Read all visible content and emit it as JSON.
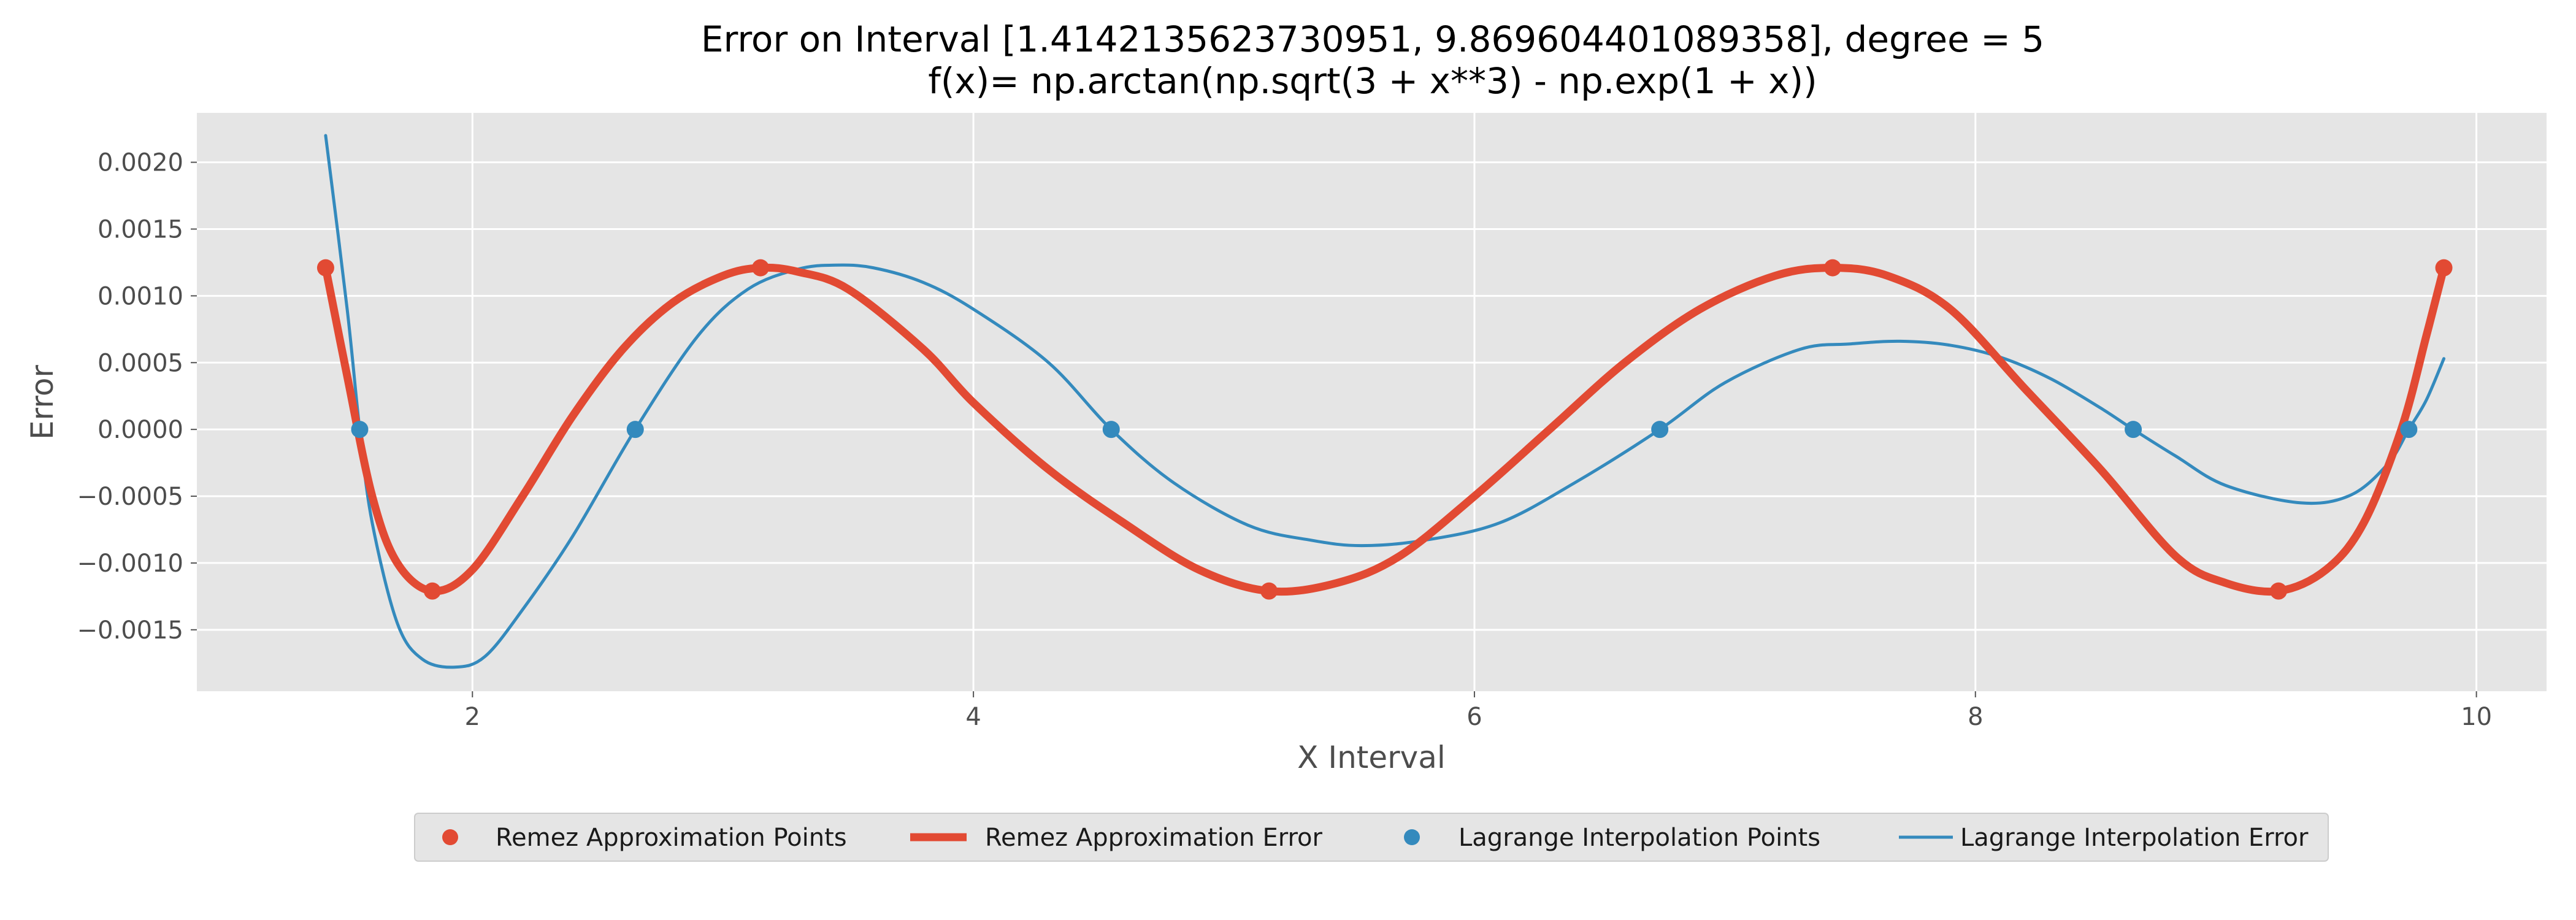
{
  "chart_data": {
    "type": "line",
    "title": "Error on Interval [1.4142135623730951, 9.869604401089358], degree = 5",
    "subtitle": "f(x)= np.arctan(np.sqrt(3 + x**3) - np.exp(1 + x))",
    "xlabel": "X Interval",
    "ylabel": "Error",
    "xlim": [
      0.9,
      10.28
    ],
    "ylim": [
      -0.00196,
      0.00237
    ],
    "xticks": [
      2,
      4,
      6,
      8,
      10
    ],
    "xtick_labels": [
      "2",
      "4",
      "6",
      "8",
      "10"
    ],
    "yticks": [
      0.002,
      0.0015,
      0.001,
      0.0005,
      0.0,
      -0.0005,
      -0.001,
      -0.0015
    ],
    "ytick_labels": [
      "0.0020",
      "0.0015",
      "0.0010",
      "0.0005",
      "0.0000",
      "−0.0005",
      "−0.0010",
      "−0.0015"
    ],
    "grid": true,
    "legend_position": "bottom-center",
    "colors": {
      "remez": "#E24A33",
      "lagrange": "#348ABD",
      "plot_bg": "#E5E5E5",
      "grid": "#FFFFFF"
    },
    "series": [
      {
        "name": "Remez Approximation Points",
        "kind": "scatter",
        "x": [
          1.414,
          1.84,
          3.15,
          5.18,
          7.43,
          9.21,
          9.87
        ],
        "y": [
          0.00121,
          -0.00121,
          0.00121,
          -0.00121,
          0.00121,
          -0.00121,
          0.00121
        ]
      },
      {
        "name": "Remez Approximation Error",
        "kind": "line",
        "x": [
          1.414,
          1.5,
          1.6,
          1.7,
          1.84,
          2.0,
          2.2,
          2.4,
          2.6,
          2.8,
          3.0,
          3.15,
          3.3,
          3.5,
          3.8,
          4.0,
          4.3,
          4.6,
          4.9,
          5.18,
          5.45,
          5.7,
          6.0,
          6.3,
          6.6,
          6.9,
          7.2,
          7.43,
          7.65,
          7.9,
          8.2,
          8.5,
          8.8,
          9.0,
          9.21,
          9.4,
          9.55,
          9.7,
          9.8,
          9.87
        ],
        "y": [
          0.00121,
          0.0004,
          -0.0005,
          -0.001,
          -0.00121,
          -0.00105,
          -0.0005,
          0.0001,
          0.0006,
          0.00095,
          0.00115,
          0.00121,
          0.00118,
          0.00105,
          0.0006,
          0.0002,
          -0.0003,
          -0.0007,
          -0.00105,
          -0.00121,
          -0.00115,
          -0.00095,
          -0.0005,
          0.0,
          0.0005,
          0.0009,
          0.00115,
          0.00121,
          0.00115,
          0.0009,
          0.0003,
          -0.0003,
          -0.00095,
          -0.00115,
          -0.00121,
          -0.00105,
          -0.0007,
          0.0,
          0.0007,
          0.00121
        ]
      },
      {
        "name": "Lagrange Interpolation Points",
        "kind": "scatter",
        "x": [
          1.55,
          2.65,
          4.55,
          6.74,
          8.63,
          9.73
        ],
        "y": [
          0.0,
          0.0,
          0.0,
          0.0,
          0.0,
          0.0
        ]
      },
      {
        "name": "Lagrange Interpolation Error",
        "kind": "line",
        "x": [
          1.414,
          1.5,
          1.55,
          1.6,
          1.7,
          1.8,
          1.93,
          2.05,
          2.2,
          2.4,
          2.65,
          2.9,
          3.1,
          3.3,
          3.45,
          3.6,
          3.8,
          4.0,
          4.3,
          4.55,
          4.8,
          5.1,
          5.35,
          5.55,
          5.8,
          6.1,
          6.4,
          6.74,
          7.0,
          7.3,
          7.5,
          7.7,
          7.9,
          8.1,
          8.3,
          8.5,
          8.63,
          8.8,
          9.0,
          9.3,
          9.5,
          9.65,
          9.73,
          9.8,
          9.87
        ],
        "y": [
          0.0022,
          0.0009,
          0.0,
          -0.0007,
          -0.00145,
          -0.00172,
          -0.00178,
          -0.0017,
          -0.00135,
          -0.0008,
          0.0,
          0.0007,
          0.00105,
          0.0012,
          0.00123,
          0.00121,
          0.0011,
          0.0009,
          0.0005,
          0.0,
          -0.0004,
          -0.00072,
          -0.00083,
          -0.00087,
          -0.00083,
          -0.0007,
          -0.0004,
          0.0,
          0.00035,
          0.0006,
          0.00064,
          0.00066,
          0.00063,
          0.00054,
          0.00038,
          0.00016,
          0.0,
          -0.0002,
          -0.00042,
          -0.00055,
          -0.00049,
          -0.00025,
          0.0,
          0.00022,
          0.00053
        ]
      }
    ]
  }
}
